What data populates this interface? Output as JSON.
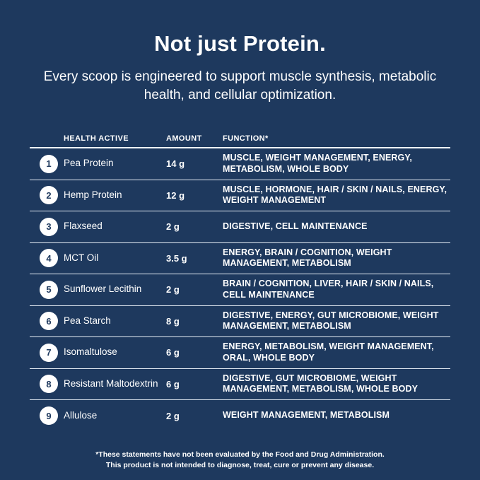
{
  "colors": {
    "background": "#1E395E",
    "text": "#FFFFFF",
    "divider_strong": "#EFF4FA",
    "divider": "#E7EEF6",
    "circle_fill": "#FFFFFF",
    "circle_number": "#1E395E"
  },
  "header": {
    "title": "Not just Protein.",
    "subtitle": "Every scoop is engineered to support muscle synthesis, metabolic health, and cellular optimization."
  },
  "table": {
    "columns": [
      "HEALTH ACTIVE",
      "AMOUNT",
      "FUNCTION*"
    ],
    "rows": [
      {
        "num": "1",
        "name": "Pea Protein",
        "amount": "14 g",
        "function": "MUSCLE, WEIGHT MANAGEMENT, ENERGY, METABOLISM, WHOLE BODY"
      },
      {
        "num": "2",
        "name": "Hemp Protein",
        "amount": "12 g",
        "function": "MUSCLE, HORMONE, HAIR / SKIN / NAILS, ENERGY, WEIGHT MANAGEMENT"
      },
      {
        "num": "3",
        "name": "Flaxseed",
        "amount": "2 g",
        "function": "DIGESTIVE, CELL MAINTENANCE"
      },
      {
        "num": "4",
        "name": "MCT Oil",
        "amount": "3.5 g",
        "function": "ENERGY, BRAIN / COGNITION, WEIGHT MANAGEMENT, METABOLISM"
      },
      {
        "num": "5",
        "name": "Sunflower Lecithin",
        "amount": "2 g",
        "function": "BRAIN / COGNITION, LIVER, HAIR / SKIN / NAILS, CELL MAINTENANCE"
      },
      {
        "num": "6",
        "name": "Pea Starch",
        "amount": "8 g",
        "function": "DIGESTIVE, ENERGY, GUT MICROBIOME, WEIGHT MANAGEMENT, METABOLISM"
      },
      {
        "num": "7",
        "name": "Isomaltulose",
        "amount": "6 g",
        "function": "ENERGY, METABOLISM, WEIGHT MANAGEMENT, ORAL, WHOLE BODY"
      },
      {
        "num": "8",
        "name": "Resistant Maltodextrin",
        "amount": "6 g",
        "function": "DIGESTIVE, GUT MICROBIOME, WEIGHT MANAGEMENT, METABOLISM, WHOLE BODY"
      },
      {
        "num": "9",
        "name": "Allulose",
        "amount": "2 g",
        "function": "WEIGHT MANAGEMENT, METABOLISM"
      }
    ]
  },
  "footnote": {
    "line1": "*These statements have not been evaluated by the Food and Drug Administration.",
    "line2": "This product is not intended to diagnose, treat, cure or prevent any disease."
  }
}
